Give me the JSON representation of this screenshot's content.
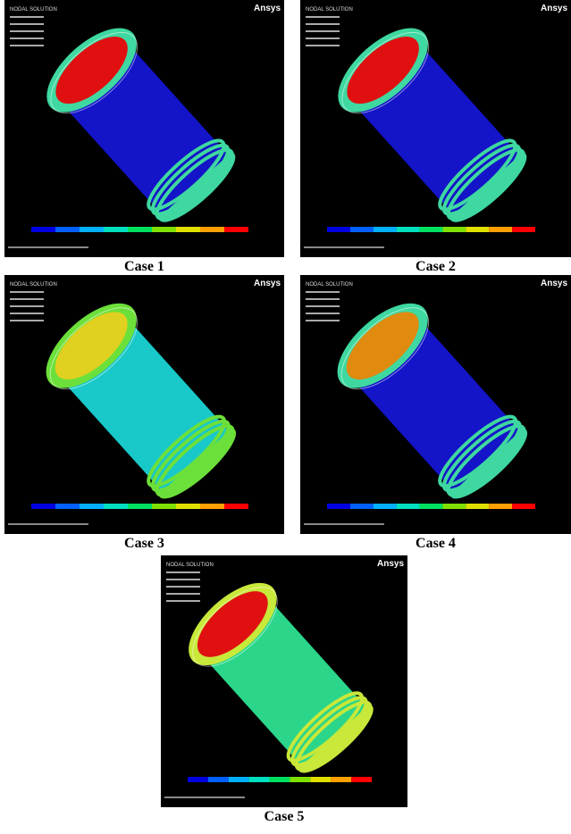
{
  "panels": [
    {
      "logo": "Ansys",
      "heading": "NODAL SOLUTION",
      "caption": "Case 1"
    },
    {
      "logo": "Ansys",
      "heading": "NODAL SOLUTION",
      "caption": "Case 2"
    },
    {
      "logo": "Ansys",
      "heading": "NODAL SOLUTION",
      "caption": "Case 3"
    },
    {
      "logo": "Ansys",
      "heading": "NODAL SOLUTION",
      "caption": "Case 4"
    },
    {
      "logo": "Ansys",
      "heading": "NODAL SOLUTION",
      "caption": "Case 5"
    }
  ]
}
